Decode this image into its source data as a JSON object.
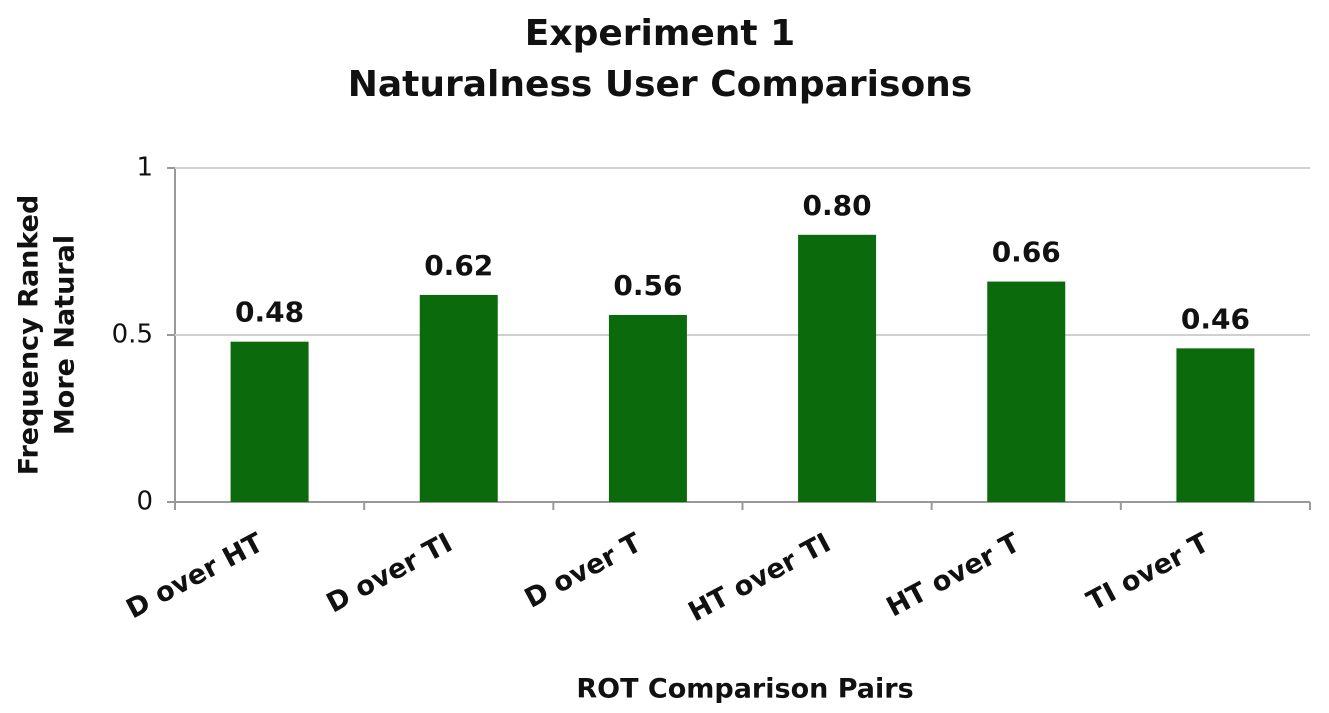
{
  "chart_data": {
    "type": "bar",
    "title": [
      "Experiment 1",
      "Naturalness User Comparisons"
    ],
    "x_label": "ROT Comparison Pairs",
    "y_label": [
      "Frequency Ranked",
      "More Natural"
    ],
    "categories": [
      "D over HT",
      "D over TI",
      "D over T",
      "HT over TI",
      "HT over T",
      "TI over T"
    ],
    "values": [
      0.48,
      0.62,
      0.56,
      0.8,
      0.66,
      0.46
    ],
    "value_labels": [
      "0.48",
      "0.62",
      "0.56",
      "0.80",
      "0.66",
      "0.46"
    ],
    "color": "#0b6a0b",
    "ylim": [
      0,
      1
    ],
    "yticks": [
      0,
      0.5,
      1
    ],
    "grid": true
  }
}
